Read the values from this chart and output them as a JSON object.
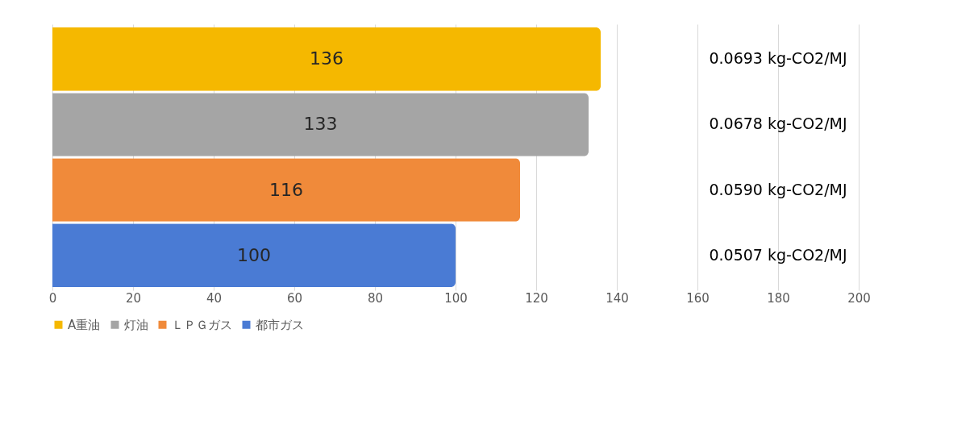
{
  "chart_data": {
    "type": "bar",
    "orientation": "horizontal",
    "categories": [
      null
    ],
    "series": [
      {
        "name": "A重油",
        "color": "#f5b800",
        "values": [
          136
        ]
      },
      {
        "name": "灯油",
        "color": "#a5a5a5",
        "values": [
          133
        ]
      },
      {
        "name": "ＬＰＧガス",
        "color": "#f08a3a",
        "values": [
          116
        ]
      },
      {
        "name": "都市ガス",
        "color": "#4a7bd4",
        "values": [
          100
        ]
      }
    ],
    "xlim": [
      0,
      200
    ],
    "xticks": [
      0,
      20,
      40,
      60,
      80,
      100,
      120,
      140,
      160,
      180,
      200
    ],
    "grid": "x",
    "legend": "bottom",
    "data_labels": true,
    "annotations": [
      "0.0693 kg-CO2/MJ",
      "0.0678 kg-CO2/MJ",
      "0.0590 kg-CO2/MJ",
      "0.0507 kg-CO2/MJ"
    ]
  }
}
